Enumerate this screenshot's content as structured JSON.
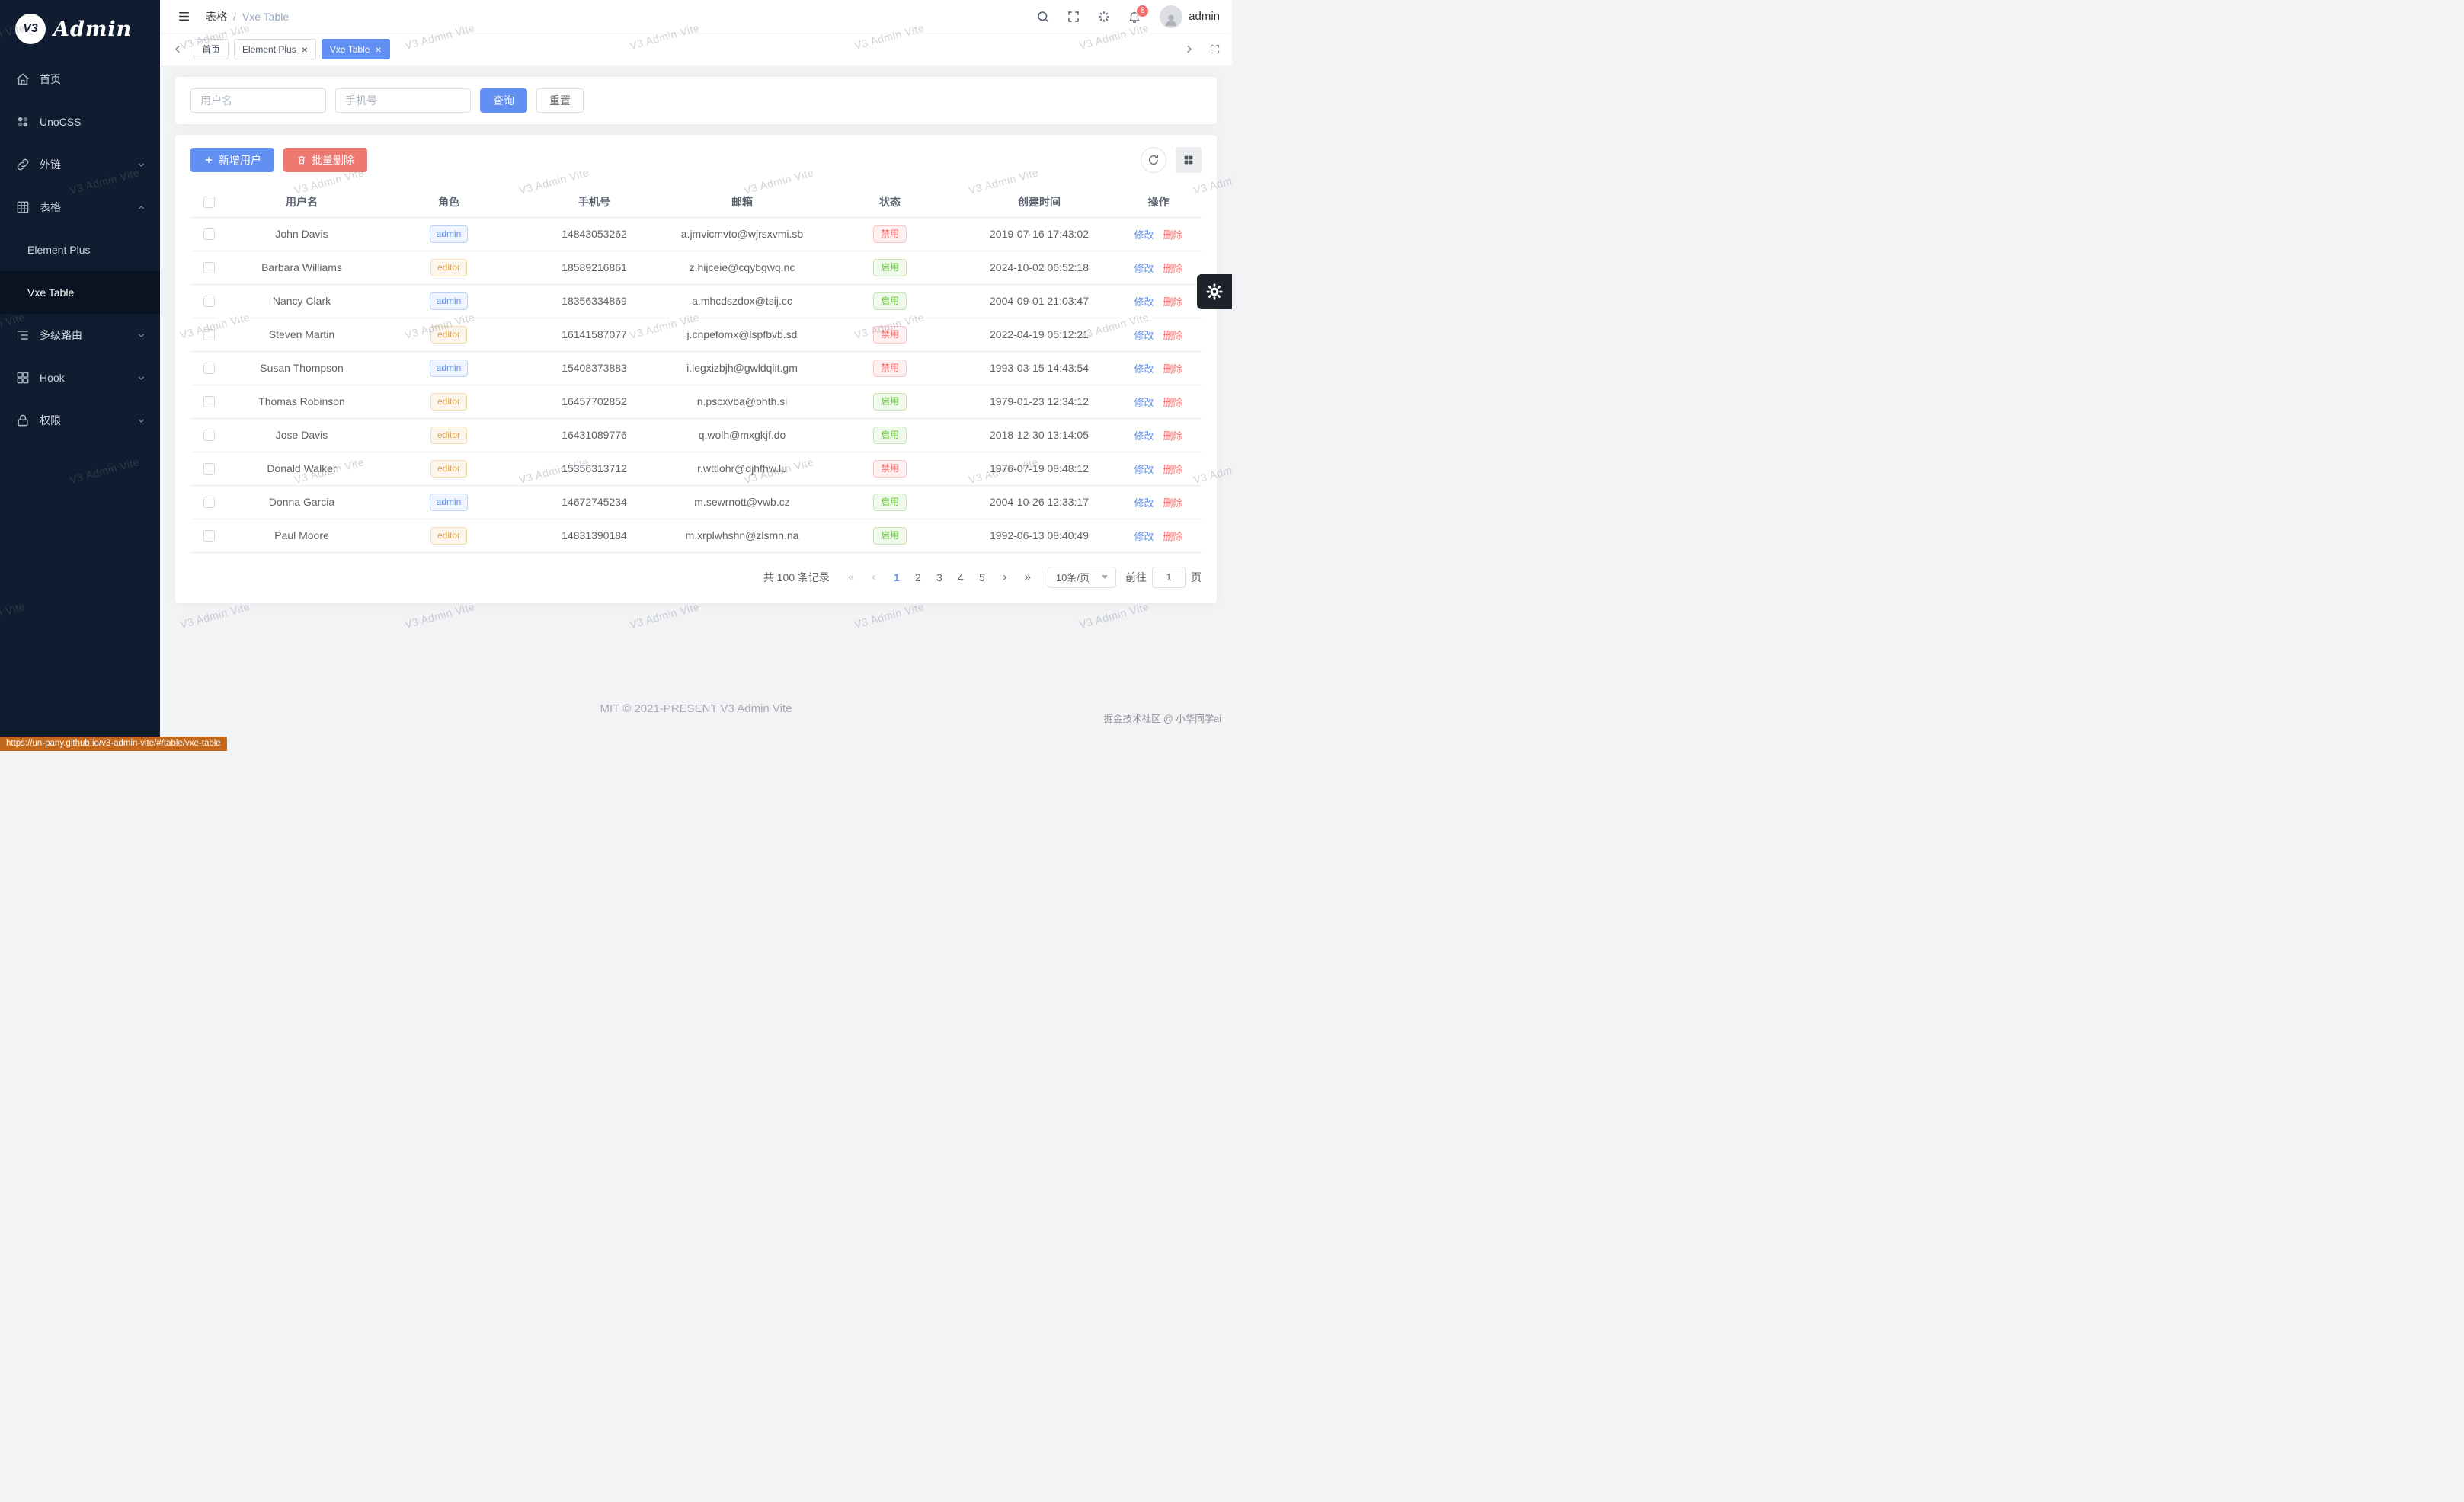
{
  "app": {
    "watermark": "V3 Admin Vite",
    "logo_badge": "V3",
    "logo_title": "Admin",
    "footer": "MIT © 2021-PRESENT V3 Admin Vite",
    "credit": "掘金技术社区 @ 小华同学ai",
    "status_url": "https://un-pany.github.io/v3-admin-vite/#/table/vxe-table"
  },
  "colors": {
    "primary": "#6190f2",
    "danger": "#f56c6c",
    "success": "#67c23a",
    "warning": "#e6a23c",
    "sidebar_bg": "#101d30"
  },
  "sidebar": {
    "items": [
      {
        "id": "home",
        "label": "首页",
        "icon": "home-icon"
      },
      {
        "id": "unocss",
        "label": "UnoCSS",
        "icon": "unocss-icon"
      },
      {
        "id": "external-link",
        "label": "外链",
        "icon": "link-icon",
        "chevron": "down"
      },
      {
        "id": "table",
        "label": "表格",
        "icon": "table-icon",
        "chevron": "up",
        "children": [
          {
            "id": "element-plus",
            "label": "Element Plus",
            "active": false
          },
          {
            "id": "vxe-table",
            "label": "Vxe Table",
            "active": true
          }
        ]
      },
      {
        "id": "multi-route",
        "label": "多级路由",
        "icon": "routes-icon",
        "chevron": "down"
      },
      {
        "id": "hook",
        "label": "Hook",
        "icon": "hook-icon",
        "chevron": "down"
      },
      {
        "id": "permission",
        "label": "权限",
        "icon": "lock-icon",
        "chevron": "down"
      }
    ]
  },
  "navbar": {
    "breadcrumb": [
      "表格",
      "Vxe Table"
    ],
    "separator": "/",
    "notification_count": "8",
    "username": "admin"
  },
  "tabbar": {
    "tabs": [
      {
        "id": "home",
        "label": "首页",
        "closable": false,
        "active": false
      },
      {
        "id": "element-plus",
        "label": "Element Plus",
        "closable": true,
        "active": false
      },
      {
        "id": "vxe-table",
        "label": "Vxe Table",
        "closable": true,
        "active": true
      }
    ]
  },
  "search": {
    "username_placeholder": "用户名",
    "phone_placeholder": "手机号",
    "query_label": "查询",
    "reset_label": "重置"
  },
  "toolbar": {
    "add_label": "新增用户",
    "delete_label": "批量删除"
  },
  "table": {
    "headers": [
      "用户名",
      "角色",
      "手机号",
      "邮箱",
      "状态",
      "创建时间",
      "操作"
    ],
    "action_edit": "修改",
    "action_delete": "删除",
    "status_enabled": "启用",
    "status_disabled": "禁用",
    "rows": [
      {
        "name": "John Davis",
        "role": "admin",
        "phone": "14843053262",
        "email": "a.jmvicmvto@wjrsxvmi.sb",
        "status": "禁用",
        "created": "2019-07-16 17:43:02"
      },
      {
        "name": "Barbara Williams",
        "role": "editor",
        "phone": "18589216861",
        "email": "z.hijceie@cqybgwq.nc",
        "status": "启用",
        "created": "2024-10-02 06:52:18"
      },
      {
        "name": "Nancy Clark",
        "role": "admin",
        "phone": "18356334869",
        "email": "a.mhcdszdox@tsij.cc",
        "status": "启用",
        "created": "2004-09-01 21:03:47"
      },
      {
        "name": "Steven Martin",
        "role": "editor",
        "phone": "16141587077",
        "email": "j.cnpefomx@lspfbvb.sd",
        "status": "禁用",
        "created": "2022-04-19 05:12:21"
      },
      {
        "name": "Susan Thompson",
        "role": "admin",
        "phone": "15408373883",
        "email": "i.legxizbjh@gwldqiit.gm",
        "status": "禁用",
        "created": "1993-03-15 14:43:54"
      },
      {
        "name": "Thomas Robinson",
        "role": "editor",
        "phone": "16457702852",
        "email": "n.pscxvba@phth.si",
        "status": "启用",
        "created": "1979-01-23 12:34:12"
      },
      {
        "name": "Jose Davis",
        "role": "editor",
        "phone": "16431089776",
        "email": "q.wolh@mxgkjf.do",
        "status": "启用",
        "created": "2018-12-30 13:14:05"
      },
      {
        "name": "Donald Walker",
        "role": "editor",
        "phone": "15356313712",
        "email": "r.wttlohr@djhfhw.lu",
        "status": "禁用",
        "created": "1976-07-19 08:48:12"
      },
      {
        "name": "Donna Garcia",
        "role": "admin",
        "phone": "14672745234",
        "email": "m.sewrnott@vwb.cz",
        "status": "启用",
        "created": "2004-10-26 12:33:17"
      },
      {
        "name": "Paul Moore",
        "role": "editor",
        "phone": "14831390184",
        "email": "m.xrplwhshn@zlsmn.na",
        "status": "启用",
        "created": "1992-06-13 08:40:49"
      }
    ]
  },
  "pagination": {
    "total_label": "共 100 条记录",
    "pages": [
      "1",
      "2",
      "3",
      "4",
      "5"
    ],
    "active_page": "1",
    "first": "«",
    "prev": "‹",
    "next": "›",
    "last": "»",
    "page_size": "10条/页",
    "goto_prefix": "前往",
    "goto_value": "1",
    "goto_suffix": "页"
  }
}
